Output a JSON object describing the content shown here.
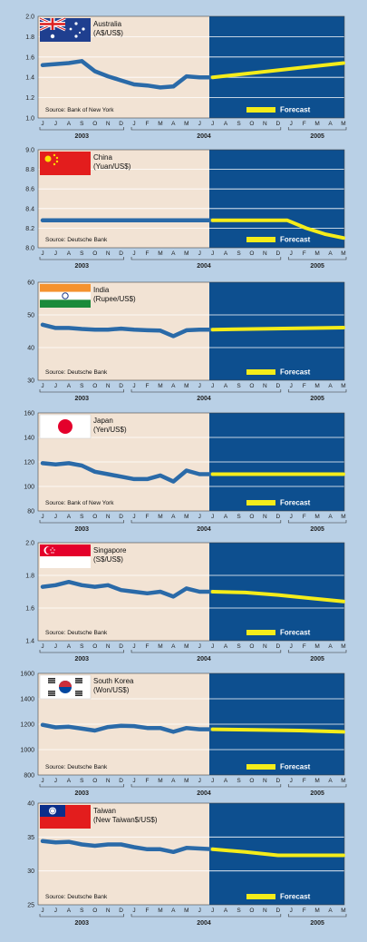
{
  "colors": {
    "background": "#b9d0e6",
    "history_panel": "#f2e3d4",
    "forecast_panel": "#0d4f8f",
    "history_line": "#2a6aa8",
    "forecast_line": "#f4ec1a",
    "gridline": "#ffffff"
  },
  "months": [
    "J",
    "J",
    "A",
    "S",
    "O",
    "N",
    "D",
    "J",
    "F",
    "M",
    "A",
    "M",
    "J",
    "J",
    "A",
    "S",
    "O",
    "N",
    "D",
    "J",
    "F",
    "M",
    "A",
    "M"
  ],
  "years": [
    "2003",
    "2004",
    "2005"
  ],
  "legend_label": "Forecast",
  "chart_data": [
    {
      "type": "line",
      "country": "Australia",
      "unit": "(A$/US$)",
      "source": "Source: Bank of New York",
      "flag": "australia-flag",
      "yticks": [
        "2.0",
        "1.8",
        "1.6",
        "1.4",
        "1.2",
        "1.0"
      ],
      "ylim": [
        1.0,
        2.0
      ],
      "history": [
        1.52,
        1.53,
        1.54,
        1.56,
        1.46,
        1.41,
        1.37,
        1.33,
        1.32,
        1.3,
        1.31,
        1.41,
        1.4,
        1.4
      ],
      "forecast": [
        1.4,
        1.54
      ]
    },
    {
      "type": "line",
      "country": "China",
      "unit": "(Yuan/US$)",
      "source": "Source: Deutsche Bank",
      "flag": "china-flag",
      "yticks": [
        "9.0",
        "8.8",
        "8.6",
        "8.4",
        "8.2",
        "8.0"
      ],
      "ylim": [
        8.0,
        9.0
      ],
      "history": [
        8.28,
        8.28,
        8.28,
        8.28,
        8.28,
        8.28,
        8.28,
        8.28,
        8.28,
        8.28,
        8.28,
        8.28,
        8.28,
        8.28
      ],
      "forecast": [
        8.28,
        8.28,
        8.28,
        8.28,
        8.28,
        8.2,
        8.14,
        8.1
      ]
    },
    {
      "type": "line",
      "country": "India",
      "unit": "(Rupee/US$)",
      "source": "Source: Deutsche Bank",
      "flag": "india-flag",
      "yticks": [
        "60",
        "50",
        "40",
        "30"
      ],
      "ylim": [
        30,
        60
      ],
      "history": [
        47,
        46,
        46,
        45.7,
        45.5,
        45.5,
        45.8,
        45.5,
        45.3,
        45.2,
        43.5,
        45.3,
        45.5,
        45.5
      ],
      "forecast": [
        45.5,
        46.1
      ]
    },
    {
      "type": "line",
      "country": "Japan",
      "unit": "(Yen/US$)",
      "source": "Source: Bank of New York",
      "flag": "japan-flag",
      "yticks": [
        "160",
        "140",
        "120",
        "100",
        "80"
      ],
      "ylim": [
        80,
        160
      ],
      "history": [
        119,
        118,
        119,
        117,
        112,
        110,
        108,
        106,
        106,
        109,
        104,
        113,
        110,
        110
      ],
      "forecast": [
        110,
        110
      ]
    },
    {
      "type": "line",
      "country": "Singapore",
      "unit": "(S$/US$)",
      "source": "Source: Deutsche Bank",
      "flag": "singapore-flag",
      "yticks": [
        "2.0",
        "1.8",
        "1.6",
        "1.4"
      ],
      "ylim": [
        1.4,
        2.0
      ],
      "history": [
        1.73,
        1.74,
        1.76,
        1.74,
        1.73,
        1.74,
        1.71,
        1.7,
        1.69,
        1.7,
        1.67,
        1.72,
        1.7,
        1.7
      ],
      "forecast": [
        1.7,
        1.695,
        1.68,
        1.66,
        1.64
      ]
    },
    {
      "type": "line",
      "country": "South Korea",
      "unit": "(Won/US$)",
      "source": "Source: Deutsche Bank",
      "flag": "south-korea-flag",
      "yticks": [
        "1600",
        "1400",
        "1200",
        "1000",
        "800"
      ],
      "ylim": [
        800,
        1600
      ],
      "history": [
        1195,
        1175,
        1180,
        1165,
        1150,
        1178,
        1188,
        1185,
        1170,
        1170,
        1140,
        1170,
        1160,
        1160
      ],
      "forecast": [
        1160,
        1155,
        1150,
        1140
      ]
    },
    {
      "type": "line",
      "country": "Taiwan",
      "unit": "(New Taiwan$/US$)",
      "source": "Source: Deutsche Bank",
      "flag": "taiwan-flag",
      "yticks": [
        "40",
        "35",
        "30",
        "25"
      ],
      "ylim": [
        25,
        40
      ],
      "history": [
        34.4,
        34.2,
        34.3,
        33.9,
        33.7,
        33.9,
        33.9,
        33.5,
        33.2,
        33.2,
        32.8,
        33.4,
        33.3,
        33.2
      ],
      "forecast": [
        33.2,
        32.8,
        32.3,
        32.3,
        32.3
      ]
    }
  ]
}
